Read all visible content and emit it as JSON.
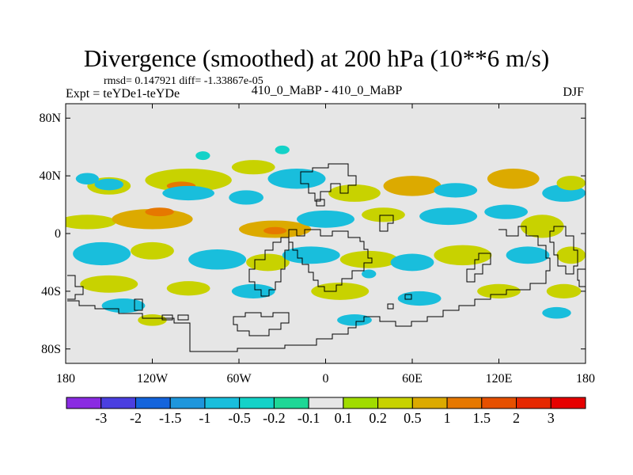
{
  "chart_data": {
    "type": "heatmap",
    "title": "Divergence (smoothed) at 200 hPa (10**6 m/s)",
    "stats_text": "rmsd= 0.147921 diff= -1.33867e-05",
    "experiment_text": "Expt = teYDe1-teYDe",
    "subtitle": "410_0_MaBP - 410_0_MaBP",
    "season": "DJF",
    "x_axis": {
      "lim": [
        -180,
        180
      ],
      "ticks": [
        -180,
        -120,
        -60,
        0,
        60,
        120,
        180
      ],
      "tick_labels": [
        "180",
        "120W",
        "60W",
        "0",
        "60E",
        "120E",
        "180"
      ]
    },
    "y_axis": {
      "lim": [
        -90,
        90
      ],
      "ticks": [
        80,
        40,
        0,
        -40,
        -80
      ],
      "tick_labels": [
        "80N",
        "40N",
        "0",
        "40S",
        "80S"
      ]
    },
    "colorbar": {
      "levels": [
        "-3",
        "-2",
        "-1.5",
        "-1",
        "-0.5",
        "-0.2",
        "-0.1",
        "0.1",
        "0.2",
        "0.5",
        "1",
        "1.5",
        "2",
        "3"
      ],
      "colors": [
        "#8a2be2",
        "#4b3fe0",
        "#1464dc",
        "#1e96dc",
        "#19bedc",
        "#14d2c8",
        "#1ed796",
        "#e6e6e6",
        "#a0dc00",
        "#c8d200",
        "#dcaa00",
        "#e67800",
        "#e65000",
        "#e62800",
        "#e60000"
      ]
    },
    "background_color": "#e6e6e6",
    "features": [
      {
        "lon": -165,
        "lat": 8,
        "rx": 20,
        "ry": 5,
        "level": 9
      },
      {
        "lon": -120,
        "lat": 10,
        "rx": 28,
        "ry": 7,
        "level": 10
      },
      {
        "lon": -115,
        "lat": 15,
        "rx": 10,
        "ry": 3,
        "level": 11
      },
      {
        "lon": -35,
        "lat": 3,
        "rx": 25,
        "ry": 6,
        "level": 10
      },
      {
        "lon": -35,
        "lat": 2,
        "rx": 8,
        "ry": 2.5,
        "level": 11
      },
      {
        "lon": -150,
        "lat": 33,
        "rx": 15,
        "ry": 6,
        "level": 9
      },
      {
        "lon": -95,
        "lat": 37,
        "rx": 30,
        "ry": 8,
        "level": 9
      },
      {
        "lon": -100,
        "lat": 33,
        "rx": 10,
        "ry": 3,
        "level": 11
      },
      {
        "lon": -50,
        "lat": 46,
        "rx": 15,
        "ry": 5,
        "level": 9
      },
      {
        "lon": -30,
        "lat": 58,
        "rx": 5,
        "ry": 3,
        "level": 5
      },
      {
        "lon": -85,
        "lat": 54,
        "rx": 5,
        "ry": 3,
        "level": 5
      },
      {
        "lon": -150,
        "lat": 34,
        "rx": 10,
        "ry": 4,
        "level": 4
      },
      {
        "lon": -165,
        "lat": 38,
        "rx": 8,
        "ry": 4,
        "level": 4
      },
      {
        "lon": -95,
        "lat": 28,
        "rx": 18,
        "ry": 5,
        "level": 4
      },
      {
        "lon": -55,
        "lat": 25,
        "rx": 12,
        "ry": 5,
        "level": 4
      },
      {
        "lon": -20,
        "lat": 38,
        "rx": 20,
        "ry": 7,
        "level": 4
      },
      {
        "lon": 20,
        "lat": 28,
        "rx": 18,
        "ry": 6,
        "level": 9
      },
      {
        "lon": 60,
        "lat": 33,
        "rx": 20,
        "ry": 7,
        "level": 10
      },
      {
        "lon": 0,
        "lat": 10,
        "rx": 20,
        "ry": 6,
        "level": 4
      },
      {
        "lon": 40,
        "lat": 13,
        "rx": 15,
        "ry": 5,
        "level": 9
      },
      {
        "lon": 90,
        "lat": 30,
        "rx": 15,
        "ry": 5,
        "level": 4
      },
      {
        "lon": 85,
        "lat": 12,
        "rx": 20,
        "ry": 6,
        "level": 4
      },
      {
        "lon": 130,
        "lat": 38,
        "rx": 18,
        "ry": 7,
        "level": 10
      },
      {
        "lon": 165,
        "lat": 28,
        "rx": 15,
        "ry": 6,
        "level": 4
      },
      {
        "lon": 125,
        "lat": 15,
        "rx": 15,
        "ry": 5,
        "level": 4
      },
      {
        "lon": 150,
        "lat": 5,
        "rx": 15,
        "ry": 8,
        "level": 9
      },
      {
        "lon": 170,
        "lat": 35,
        "rx": 10,
        "ry": 5,
        "level": 9
      },
      {
        "lon": -155,
        "lat": -14,
        "rx": 20,
        "ry": 8,
        "level": 4
      },
      {
        "lon": -120,
        "lat": -12,
        "rx": 15,
        "ry": 6,
        "level": 9
      },
      {
        "lon": -75,
        "lat": -18,
        "rx": 20,
        "ry": 7,
        "level": 4
      },
      {
        "lon": -40,
        "lat": -20,
        "rx": 15,
        "ry": 6,
        "level": 9
      },
      {
        "lon": -10,
        "lat": -15,
        "rx": 20,
        "ry": 6,
        "level": 4
      },
      {
        "lon": 30,
        "lat": -18,
        "rx": 20,
        "ry": 6,
        "level": 9
      },
      {
        "lon": 60,
        "lat": -20,
        "rx": 15,
        "ry": 6,
        "level": 4
      },
      {
        "lon": 95,
        "lat": -15,
        "rx": 20,
        "ry": 7,
        "level": 9
      },
      {
        "lon": 140,
        "lat": -15,
        "rx": 15,
        "ry": 6,
        "level": 4
      },
      {
        "lon": 170,
        "lat": -15,
        "rx": 10,
        "ry": 6,
        "level": 9
      },
      {
        "lon": -150,
        "lat": -35,
        "rx": 20,
        "ry": 6,
        "level": 9
      },
      {
        "lon": -95,
        "lat": -38,
        "rx": 15,
        "ry": 5,
        "level": 9
      },
      {
        "lon": -140,
        "lat": -50,
        "rx": 15,
        "ry": 5,
        "level": 4
      },
      {
        "lon": -50,
        "lat": -40,
        "rx": 15,
        "ry": 5,
        "level": 4
      },
      {
        "lon": 10,
        "lat": -40,
        "rx": 20,
        "ry": 6,
        "level": 9
      },
      {
        "lon": 65,
        "lat": -45,
        "rx": 15,
        "ry": 5,
        "level": 4
      },
      {
        "lon": 120,
        "lat": -40,
        "rx": 15,
        "ry": 5,
        "level": 9
      },
      {
        "lon": 165,
        "lat": -40,
        "rx": 12,
        "ry": 5,
        "level": 9
      },
      {
        "lon": -120,
        "lat": -60,
        "rx": 10,
        "ry": 4,
        "level": 9
      },
      {
        "lon": 20,
        "lat": -60,
        "rx": 12,
        "ry": 4,
        "level": 4
      },
      {
        "lon": 160,
        "lat": -55,
        "rx": 10,
        "ry": 4,
        "level": 4
      },
      {
        "lon": 30,
        "lat": -28,
        "rx": 5,
        "ry": 3,
        "level": 4
      }
    ]
  }
}
